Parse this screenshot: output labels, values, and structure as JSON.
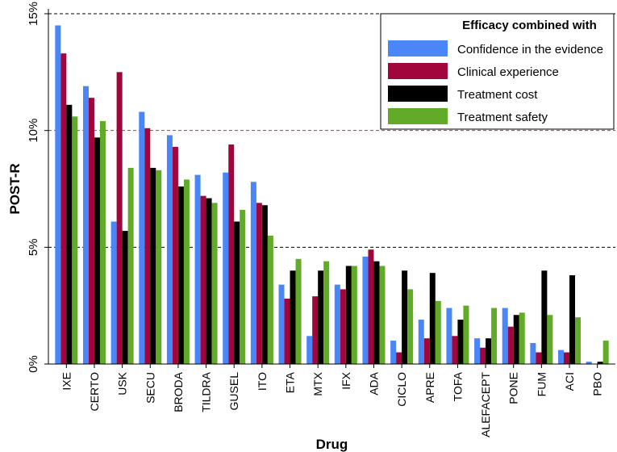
{
  "chart_data": {
    "type": "bar",
    "xlabel": "Drug",
    "ylabel": "POST-R",
    "ylim": [
      0,
      15
    ],
    "yticks": [
      0,
      5,
      10,
      15
    ],
    "ytick_labels": [
      "0%",
      "5%",
      "10%",
      "15%"
    ],
    "reference_lines": [
      {
        "y": 15,
        "color": "#000000"
      },
      {
        "y": 10,
        "color": "#d62728"
      },
      {
        "y": 5,
        "color": "#000000"
      }
    ],
    "legend": {
      "title": "Efficacy combined with",
      "position": "top-right"
    },
    "categories": [
      "IXE",
      "CERTO",
      "USK",
      "SECU",
      "BRODA",
      "TILDRA",
      "GUSEL",
      "ITO",
      "ETA",
      "MTX",
      "IFX",
      "ADA",
      "CICLO",
      "APRE",
      "TOFA",
      "ALEFACEPT",
      "PONE",
      "FUM",
      "ACI",
      "PBO"
    ],
    "series": [
      {
        "name": "Confidence in the evidence",
        "color": "#4a86f7",
        "values": [
          14.5,
          11.9,
          6.1,
          10.8,
          9.8,
          8.1,
          8.2,
          7.8,
          3.4,
          1.2,
          3.4,
          4.6,
          1.0,
          1.9,
          2.4,
          1.1,
          2.4,
          0.9,
          0.6,
          0.1
        ]
      },
      {
        "name": "Clinical experience",
        "color": "#a1053c",
        "values": [
          13.3,
          11.4,
          12.5,
          10.1,
          9.3,
          7.2,
          9.4,
          6.9,
          2.8,
          2.9,
          3.2,
          4.9,
          0.5,
          1.1,
          1.2,
          0.7,
          1.6,
          0.5,
          0.5,
          0.0
        ]
      },
      {
        "name": "Treatment cost",
        "color": "#000000",
        "values": [
          11.1,
          9.7,
          5.7,
          8.4,
          7.6,
          7.1,
          6.1,
          6.8,
          4.0,
          4.0,
          4.2,
          4.4,
          4.0,
          3.9,
          1.9,
          1.1,
          2.1,
          4.0,
          3.8,
          0.1
        ]
      },
      {
        "name": "Treatment safety",
        "color": "#62ab28",
        "values": [
          10.6,
          10.4,
          8.4,
          8.3,
          7.9,
          6.9,
          6.6,
          5.5,
          4.5,
          4.4,
          4.2,
          4.2,
          3.2,
          2.7,
          2.5,
          2.4,
          2.2,
          2.1,
          2.0,
          1.0
        ]
      }
    ]
  }
}
